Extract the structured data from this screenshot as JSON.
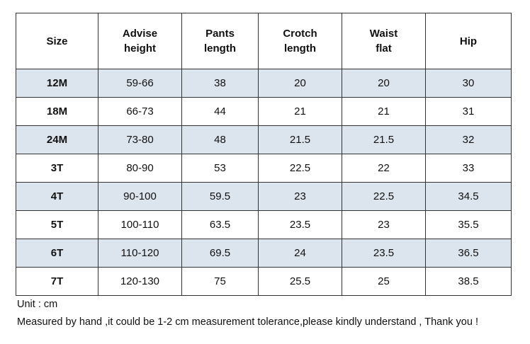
{
  "table": {
    "header": [
      "Size",
      "Advise\nheight",
      "Pants\nlength",
      "Crotch\nlength",
      "Waist\nflat",
      "Hip"
    ],
    "rows": [
      [
        "12M",
        "59-66",
        "38",
        "20",
        "20",
        "30"
      ],
      [
        "18M",
        "66-73",
        "44",
        "21",
        "21",
        "31"
      ],
      [
        "24M",
        "73-80",
        "48",
        "21.5",
        "21.5",
        "32"
      ],
      [
        "3T",
        "80-90",
        "53",
        "22.5",
        "22",
        "33"
      ],
      [
        "4T",
        "90-100",
        "59.5",
        "23",
        "22.5",
        "34.5"
      ],
      [
        "5T",
        "100-110",
        "63.5",
        "23.5",
        "23",
        "35.5"
      ],
      [
        "6T",
        "110-120",
        "69.5",
        "24",
        "23.5",
        "36.5"
      ],
      [
        "7T",
        "120-130",
        "75",
        "25.5",
        "25",
        "38.5"
      ]
    ]
  },
  "notes": [
    "Unit : cm",
    "Measured by hand ,it could be 1-2 cm measurement tolerance,please kindly understand , Thank you !"
  ]
}
